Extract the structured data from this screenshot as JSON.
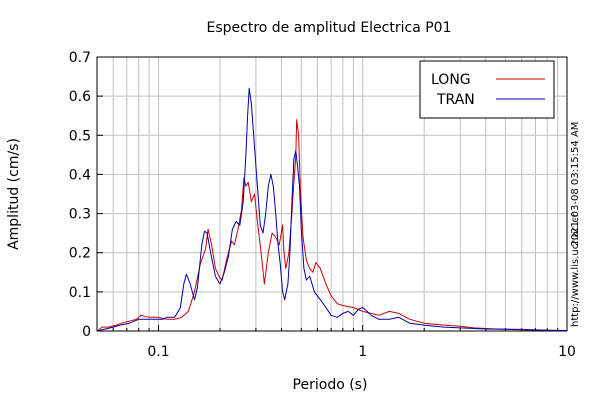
{
  "chart_data": {
    "type": "line",
    "title": "Espectro de amplitud Electrica P01",
    "xlabel": "Periodo (s)",
    "ylabel": "Amplitud (cm/s)",
    "xscale": "log",
    "xlim": [
      0.05,
      10
    ],
    "ylim": [
      0,
      0.7
    ],
    "grid": true,
    "legend_position": "top-right",
    "x_ticks": [
      {
        "value": 0.1,
        "label": "0.1"
      },
      {
        "value": 1,
        "label": "1"
      },
      {
        "value": 10,
        "label": "10"
      }
    ],
    "y_ticks": [
      {
        "value": 0,
        "label": "0"
      },
      {
        "value": 0.1,
        "label": "0.1"
      },
      {
        "value": 0.2,
        "label": "0.2"
      },
      {
        "value": 0.3,
        "label": "0.3"
      },
      {
        "value": 0.4,
        "label": "0.4"
      },
      {
        "value": 0.5,
        "label": "0.5"
      },
      {
        "value": 0.6,
        "label": "0.6"
      },
      {
        "value": 0.7,
        "label": "0.7"
      }
    ],
    "side_labels": {
      "timestamp": "2021-03-08 03:15:54 AM",
      "url": "http://www.lis.ucr.ac.cr"
    },
    "series": [
      {
        "name": "LONG",
        "color": "#cc0000",
        "points": [
          [
            0.05,
            0.0
          ],
          [
            0.053,
            0.01
          ],
          [
            0.057,
            0.01
          ],
          [
            0.062,
            0.015
          ],
          [
            0.066,
            0.02
          ],
          [
            0.072,
            0.025
          ],
          [
            0.078,
            0.03
          ],
          [
            0.082,
            0.04
          ],
          [
            0.09,
            0.035
          ],
          [
            0.1,
            0.035
          ],
          [
            0.11,
            0.03
          ],
          [
            0.12,
            0.03
          ],
          [
            0.13,
            0.035
          ],
          [
            0.14,
            0.05
          ],
          [
            0.15,
            0.1
          ],
          [
            0.16,
            0.17
          ],
          [
            0.17,
            0.21
          ],
          [
            0.175,
            0.26
          ],
          [
            0.182,
            0.22
          ],
          [
            0.19,
            0.16
          ],
          [
            0.2,
            0.135
          ],
          [
            0.205,
            0.13
          ],
          [
            0.215,
            0.18
          ],
          [
            0.22,
            0.2
          ],
          [
            0.228,
            0.23
          ],
          [
            0.235,
            0.22
          ],
          [
            0.245,
            0.26
          ],
          [
            0.255,
            0.31
          ],
          [
            0.262,
            0.39
          ],
          [
            0.268,
            0.37
          ],
          [
            0.275,
            0.38
          ],
          [
            0.285,
            0.33
          ],
          [
            0.295,
            0.35
          ],
          [
            0.305,
            0.28
          ],
          [
            0.318,
            0.2
          ],
          [
            0.33,
            0.12
          ],
          [
            0.345,
            0.2
          ],
          [
            0.36,
            0.25
          ],
          [
            0.375,
            0.24
          ],
          [
            0.39,
            0.22
          ],
          [
            0.405,
            0.27
          ],
          [
            0.41,
            0.21
          ],
          [
            0.42,
            0.16
          ],
          [
            0.435,
            0.2
          ],
          [
            0.45,
            0.3
          ],
          [
            0.46,
            0.38
          ],
          [
            0.47,
            0.45
          ],
          [
            0.475,
            0.54
          ],
          [
            0.485,
            0.5
          ],
          [
            0.495,
            0.36
          ],
          [
            0.51,
            0.24
          ],
          [
            0.53,
            0.18
          ],
          [
            0.55,
            0.16
          ],
          [
            0.57,
            0.15
          ],
          [
            0.59,
            0.175
          ],
          [
            0.62,
            0.16
          ],
          [
            0.66,
            0.12
          ],
          [
            0.7,
            0.09
          ],
          [
            0.75,
            0.07
          ],
          [
            0.8,
            0.065
          ],
          [
            0.9,
            0.06
          ],
          [
            1.0,
            0.05
          ],
          [
            1.1,
            0.045
          ],
          [
            1.2,
            0.04
          ],
          [
            1.35,
            0.05
          ],
          [
            1.5,
            0.045
          ],
          [
            1.7,
            0.03
          ],
          [
            2.0,
            0.02
          ],
          [
            2.5,
            0.015
          ],
          [
            3.0,
            0.012
          ],
          [
            3.5,
            0.008
          ],
          [
            4.5,
            0.005
          ],
          [
            6,
            0.003
          ],
          [
            8,
            0.002
          ],
          [
            10,
            0.001
          ]
        ]
      },
      {
        "name": "TRAN",
        "color": "#0000aa",
        "points": [
          [
            0.05,
            0.0
          ],
          [
            0.055,
            0.005
          ],
          [
            0.06,
            0.01
          ],
          [
            0.065,
            0.015
          ],
          [
            0.072,
            0.02
          ],
          [
            0.08,
            0.03
          ],
          [
            0.09,
            0.03
          ],
          [
            0.1,
            0.03
          ],
          [
            0.105,
            0.03
          ],
          [
            0.11,
            0.035
          ],
          [
            0.12,
            0.035
          ],
          [
            0.128,
            0.06
          ],
          [
            0.133,
            0.12
          ],
          [
            0.137,
            0.145
          ],
          [
            0.143,
            0.12
          ],
          [
            0.15,
            0.08
          ],
          [
            0.155,
            0.11
          ],
          [
            0.163,
            0.22
          ],
          [
            0.168,
            0.255
          ],
          [
            0.173,
            0.25
          ],
          [
            0.18,
            0.2
          ],
          [
            0.19,
            0.14
          ],
          [
            0.2,
            0.12
          ],
          [
            0.21,
            0.15
          ],
          [
            0.22,
            0.19
          ],
          [
            0.23,
            0.26
          ],
          [
            0.24,
            0.28
          ],
          [
            0.25,
            0.27
          ],
          [
            0.26,
            0.33
          ],
          [
            0.268,
            0.45
          ],
          [
            0.273,
            0.55
          ],
          [
            0.278,
            0.62
          ],
          [
            0.285,
            0.58
          ],
          [
            0.295,
            0.47
          ],
          [
            0.305,
            0.37
          ],
          [
            0.315,
            0.27
          ],
          [
            0.325,
            0.25
          ],
          [
            0.335,
            0.3
          ],
          [
            0.345,
            0.37
          ],
          [
            0.355,
            0.4
          ],
          [
            0.365,
            0.37
          ],
          [
            0.375,
            0.3
          ],
          [
            0.385,
            0.22
          ],
          [
            0.395,
            0.17
          ],
          [
            0.405,
            0.1
          ],
          [
            0.415,
            0.08
          ],
          [
            0.43,
            0.12
          ],
          [
            0.44,
            0.2
          ],
          [
            0.45,
            0.33
          ],
          [
            0.46,
            0.44
          ],
          [
            0.47,
            0.46
          ],
          [
            0.48,
            0.42
          ],
          [
            0.49,
            0.37
          ],
          [
            0.5,
            0.26
          ],
          [
            0.515,
            0.16
          ],
          [
            0.53,
            0.13
          ],
          [
            0.55,
            0.14
          ],
          [
            0.58,
            0.1
          ],
          [
            0.62,
            0.08
          ],
          [
            0.66,
            0.06
          ],
          [
            0.7,
            0.04
          ],
          [
            0.75,
            0.035
          ],
          [
            0.8,
            0.045
          ],
          [
            0.85,
            0.05
          ],
          [
            0.9,
            0.04
          ],
          [
            0.95,
            0.055
          ],
          [
            1.0,
            0.06
          ],
          [
            1.05,
            0.05
          ],
          [
            1.1,
            0.04
          ],
          [
            1.2,
            0.03
          ],
          [
            1.35,
            0.03
          ],
          [
            1.5,
            0.035
          ],
          [
            1.7,
            0.02
          ],
          [
            2.0,
            0.015
          ],
          [
            2.5,
            0.01
          ],
          [
            3.0,
            0.008
          ],
          [
            4.0,
            0.005
          ],
          [
            6,
            0.004
          ],
          [
            8,
            0.002
          ],
          [
            10,
            0.001
          ]
        ]
      }
    ]
  }
}
